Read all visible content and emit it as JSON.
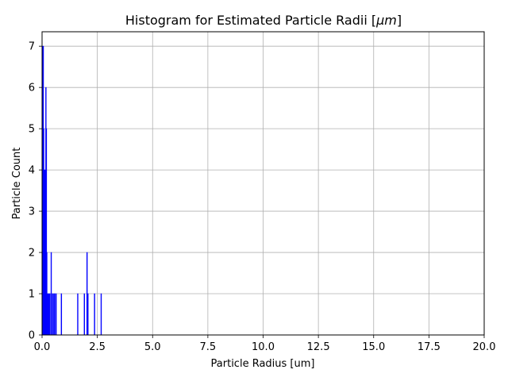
{
  "chart_data": {
    "type": "bar",
    "title": "Histogram for Estimated Particle Radii [",
    "title_unit": "μm",
    "title_end": "]",
    "xlabel": "Particle Radius [um]",
    "ylabel": "Particle Count",
    "xlim": [
      0,
      20
    ],
    "ylim": [
      0,
      7.35
    ],
    "xticks": [
      "0.0",
      "2.5",
      "5.0",
      "7.5",
      "10.0",
      "12.5",
      "15.0",
      "17.5",
      "20.0"
    ],
    "yticks": [
      "0",
      "1",
      "2",
      "3",
      "4",
      "5",
      "6",
      "7"
    ],
    "grid": true,
    "bar_color": "#0000ff",
    "bin_width": 0.02,
    "bins": [
      {
        "x": 0.02,
        "count": 7
      },
      {
        "x": 0.04,
        "count": 7
      },
      {
        "x": 0.06,
        "count": 5
      },
      {
        "x": 0.08,
        "count": 4
      },
      {
        "x": 0.1,
        "count": 4
      },
      {
        "x": 0.12,
        "count": 3
      },
      {
        "x": 0.14,
        "count": 4
      },
      {
        "x": 0.16,
        "count": 6
      },
      {
        "x": 0.18,
        "count": 5
      },
      {
        "x": 0.2,
        "count": 2
      },
      {
        "x": 0.22,
        "count": 1
      },
      {
        "x": 0.26,
        "count": 1
      },
      {
        "x": 0.3,
        "count": 1
      },
      {
        "x": 0.34,
        "count": 1
      },
      {
        "x": 0.4,
        "count": 2
      },
      {
        "x": 0.46,
        "count": 1
      },
      {
        "x": 0.52,
        "count": 1
      },
      {
        "x": 0.56,
        "count": 1
      },
      {
        "x": 0.62,
        "count": 1
      },
      {
        "x": 0.86,
        "count": 1
      },
      {
        "x": 1.6,
        "count": 1
      },
      {
        "x": 1.9,
        "count": 1
      },
      {
        "x": 2.02,
        "count": 2
      },
      {
        "x": 2.06,
        "count": 1
      },
      {
        "x": 2.36,
        "count": 1
      },
      {
        "x": 2.66,
        "count": 1
      }
    ]
  }
}
